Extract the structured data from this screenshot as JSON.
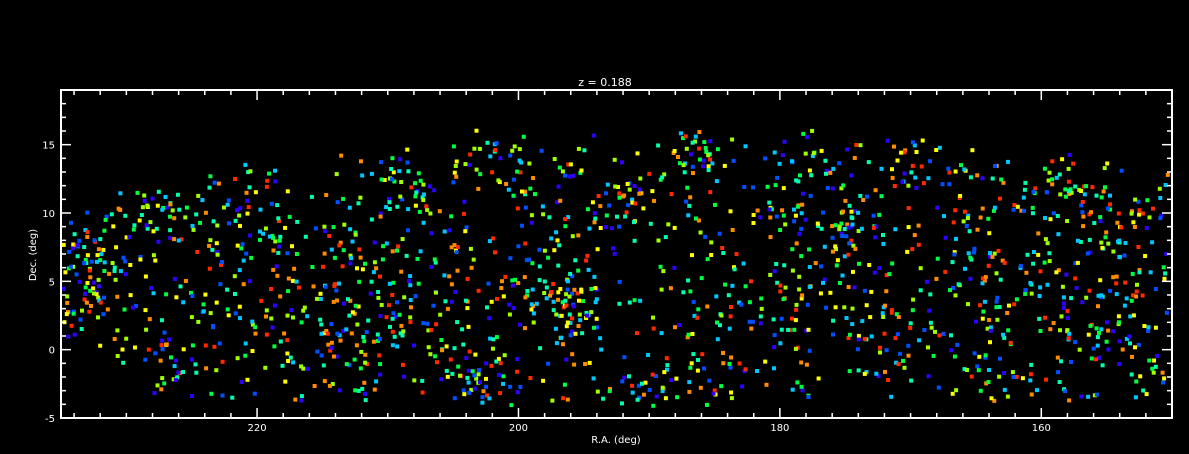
{
  "chart_data": {
    "type": "scatter",
    "title": "z = 0.188",
    "xlabel": "R.A. (deg)",
    "ylabel": "Dec. (deg)",
    "xlim": [
      235,
      150
    ],
    "ylim": [
      -5,
      19
    ],
    "x_ticks": [
      220,
      200,
      180,
      160
    ],
    "y_ticks": [
      -5,
      0,
      5,
      10,
      15
    ],
    "grid": false,
    "colors": [
      "#ff2a00",
      "#ff8c00",
      "#ffff00",
      "#a0ff00",
      "#00ff40",
      "#00ffb0",
      "#00c8ff",
      "#0050ff",
      "#3000ff"
    ],
    "clusters": [
      {
        "ra": 233.5,
        "dec": 5.5,
        "sra": 1.8,
        "sdec": 2.2,
        "n": 70
      },
      {
        "ra": 227.5,
        "dec": 10.0,
        "sra": 2.0,
        "sdec": 1.6,
        "n": 40
      },
      {
        "ra": 226.0,
        "dec": -1.5,
        "sra": 2.5,
        "sdec": 1.2,
        "n": 25
      },
      {
        "ra": 220.5,
        "dec": 8.5,
        "sra": 2.0,
        "sdec": 2.5,
        "n": 35
      },
      {
        "ra": 217.5,
        "dec": 1.5,
        "sra": 2.0,
        "sdec": 2.0,
        "n": 25
      },
      {
        "ra": 213.5,
        "dec": 7.5,
        "sra": 1.5,
        "sdec": 2.0,
        "n": 30
      },
      {
        "ra": 211.5,
        "dec": 2.0,
        "sra": 1.8,
        "sdec": 2.5,
        "n": 45
      },
      {
        "ra": 209.0,
        "dec": 11.0,
        "sra": 2.0,
        "sdec": 2.0,
        "n": 40
      },
      {
        "ra": 206.5,
        "dec": 2.5,
        "sra": 2.0,
        "sdec": 2.5,
        "n": 35
      },
      {
        "ra": 203.0,
        "dec": -2.5,
        "sra": 1.5,
        "sdec": 0.8,
        "n": 30
      },
      {
        "ra": 201.0,
        "dec": 13.5,
        "sra": 2.0,
        "sdec": 1.5,
        "n": 30
      },
      {
        "ra": 199.5,
        "dec": 5.0,
        "sra": 2.0,
        "sdec": 2.5,
        "n": 35
      },
      {
        "ra": 195.8,
        "dec": 3.2,
        "sra": 1.0,
        "sdec": 1.5,
        "n": 45
      },
      {
        "ra": 191.5,
        "dec": 10.5,
        "sra": 1.5,
        "sdec": 1.2,
        "n": 30
      },
      {
        "ra": 190.0,
        "dec": -3.0,
        "sra": 2.0,
        "sdec": 0.7,
        "n": 35
      },
      {
        "ra": 186.5,
        "dec": 14.5,
        "sra": 1.5,
        "sdec": 1.0,
        "n": 25
      },
      {
        "ra": 185.0,
        "dec": 1.5,
        "sra": 2.0,
        "sdec": 2.5,
        "n": 30
      },
      {
        "ra": 179.5,
        "dec": 12.0,
        "sra": 1.8,
        "sdec": 2.0,
        "n": 35
      },
      {
        "ra": 178.0,
        "dec": 4.5,
        "sra": 2.0,
        "sdec": 2.0,
        "n": 30
      },
      {
        "ra": 174.5,
        "dec": 9.0,
        "sra": 1.5,
        "sdec": 1.5,
        "n": 45
      },
      {
        "ra": 172.5,
        "dec": 2.0,
        "sra": 2.0,
        "sdec": 2.0,
        "n": 30
      },
      {
        "ra": 168.5,
        "dec": 13.0,
        "sra": 2.0,
        "sdec": 1.5,
        "n": 30
      },
      {
        "ra": 166.0,
        "dec": 6.0,
        "sra": 2.0,
        "sdec": 2.5,
        "n": 35
      },
      {
        "ra": 163.5,
        "dec": -0.5,
        "sra": 2.0,
        "sdec": 1.5,
        "n": 30
      },
      {
        "ra": 159.0,
        "dec": 12.0,
        "sra": 2.0,
        "sdec": 1.5,
        "n": 45
      },
      {
        "ra": 157.5,
        "dec": 4.5,
        "sra": 2.0,
        "sdec": 2.5,
        "n": 40
      },
      {
        "ra": 153.0,
        "dec": 1.0,
        "sra": 2.0,
        "sdec": 2.0,
        "n": 35
      },
      {
        "ra": 153.5,
        "dec": 9.5,
        "sra": 2.0,
        "sdec": 2.0,
        "n": 30
      }
    ],
    "field_points": 900,
    "field_dec_range": [
      -3.8,
      16.2
    ],
    "seed": 188
  }
}
